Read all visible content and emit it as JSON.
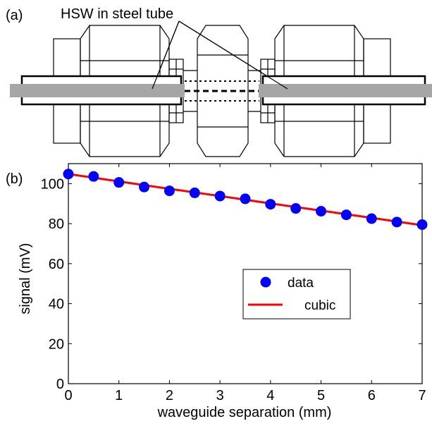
{
  "panel_a": {
    "label": "(a)",
    "annotation": "HSW in steel tube"
  },
  "chart_data": {
    "type": "scatter",
    "panel_label": "(b)",
    "xlabel": "waveguide separation (mm)",
    "ylabel": "signal (mV)",
    "xlim": [
      0,
      7
    ],
    "ylim": [
      0,
      110
    ],
    "xticks": [
      0,
      1,
      2,
      3,
      4,
      5,
      6,
      7
    ],
    "yticks": [
      0,
      20,
      40,
      60,
      80,
      100
    ],
    "grid": false,
    "legend_position": "center-right",
    "series": [
      {
        "name": "data",
        "kind": "markers",
        "color": "#0000ff",
        "x": [
          0,
          0.5,
          1,
          1.5,
          2,
          2.5,
          3,
          3.5,
          4,
          4.5,
          5,
          5.5,
          6,
          6.5,
          7
        ],
        "y": [
          104.8,
          103.6,
          100.6,
          98.3,
          96.4,
          95.4,
          93.8,
          92.4,
          89.7,
          87.6,
          86.2,
          84.4,
          82.5,
          80.8,
          79.5
        ]
      },
      {
        "name": "cubic",
        "kind": "line",
        "color": "#ff0000",
        "x": [
          0,
          1,
          2,
          3,
          4,
          5,
          6,
          7
        ],
        "y": [
          104.8,
          101.1,
          97.4,
          93.8,
          90.1,
          86.5,
          82.9,
          79.2
        ]
      }
    ]
  }
}
